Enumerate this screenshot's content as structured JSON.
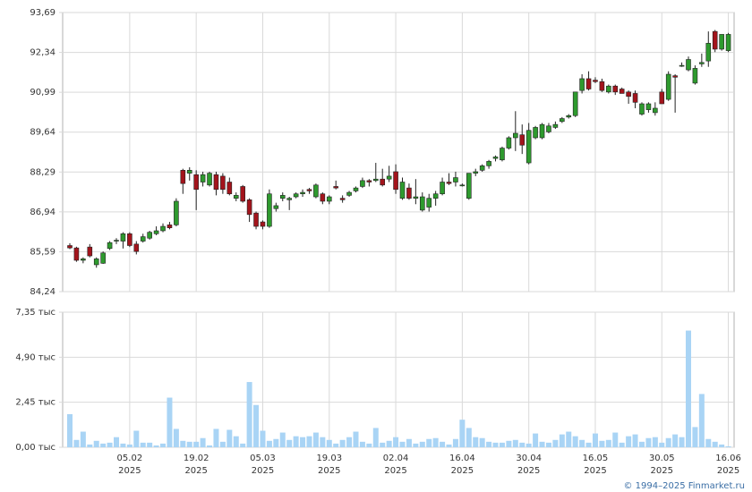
{
  "chart_data": [
    {
      "type": "candlestick",
      "up_color": "#2e9a2e",
      "down_color": "#a3141c",
      "edge_color": "#222222",
      "ylim": [
        84.24,
        93.69
      ],
      "yticks": [
        {
          "value": 84.24,
          "label": "84,24"
        },
        {
          "value": 85.59,
          "label": "85,59"
        },
        {
          "value": 86.94,
          "label": "86,94"
        },
        {
          "value": 88.29,
          "label": "88,29"
        },
        {
          "value": 89.64,
          "label": "89,64"
        },
        {
          "value": 90.99,
          "label": "90,99"
        },
        {
          "value": 92.34,
          "label": "92,34"
        },
        {
          "value": 93.69,
          "label": "93,69"
        }
      ],
      "grid": true,
      "open": [
        85.8,
        85.72,
        85.3,
        85.75,
        85.15,
        85.2,
        85.7,
        85.95,
        85.95,
        86.2,
        85.85,
        85.95,
        86.05,
        86.2,
        86.3,
        86.5,
        86.5,
        88.35,
        88.25,
        88.2,
        87.95,
        87.85,
        88.2,
        88.15,
        87.95,
        87.4,
        87.8,
        87.35,
        86.9,
        86.6,
        86.45,
        87.05,
        87.4,
        87.35,
        87.45,
        87.55,
        87.7,
        87.45,
        87.55,
        87.3,
        87.8,
        87.4,
        87.5,
        87.65,
        87.8,
        88.0,
        88.0,
        88.05,
        88.05,
        88.3,
        87.4,
        87.75,
        87.4,
        87.0,
        87.1,
        87.4,
        87.55,
        87.95,
        87.95,
        87.85,
        87.4,
        88.25,
        88.35,
        88.5,
        88.75,
        88.7,
        89.1,
        89.45,
        89.55,
        88.6,
        89.45,
        89.45,
        89.65,
        89.8,
        90.0,
        90.15,
        90.2,
        91.05,
        91.45,
        91.4,
        91.35,
        91.0,
        91.2,
        91.1,
        91.0,
        90.95,
        90.25,
        90.4,
        90.3,
        91.0,
        90.75,
        91.55,
        91.9,
        91.75,
        91.3,
        91.95,
        92.05,
        93.05,
        92.45,
        92.4
      ],
      "high": [
        85.88,
        85.76,
        85.4,
        85.85,
        85.4,
        85.6,
        85.95,
        86.05,
        86.25,
        86.25,
        85.95,
        86.2,
        86.3,
        86.45,
        86.55,
        86.6,
        87.4,
        88.4,
        88.45,
        88.35,
        88.3,
        88.3,
        88.3,
        88.25,
        88.1,
        87.6,
        87.85,
        87.4,
        86.95,
        86.65,
        87.7,
        87.25,
        87.6,
        87.45,
        87.6,
        87.7,
        87.75,
        87.9,
        87.6,
        87.5,
        88.0,
        87.5,
        87.65,
        87.8,
        88.1,
        88.05,
        88.6,
        88.4,
        88.5,
        88.55,
        88.1,
        87.9,
        88.05,
        87.6,
        87.55,
        87.65,
        88.1,
        88.25,
        88.3,
        87.9,
        88.25,
        88.4,
        88.55,
        88.7,
        88.85,
        89.15,
        89.5,
        90.35,
        89.9,
        89.95,
        89.85,
        89.95,
        89.95,
        90.0,
        90.15,
        90.25,
        91.0,
        91.6,
        91.7,
        91.5,
        91.45,
        91.25,
        91.25,
        91.15,
        91.05,
        91.05,
        90.65,
        90.65,
        90.65,
        91.1,
        91.7,
        91.6,
        92.0,
        92.2,
        91.9,
        92.3,
        93.05,
        93.1,
        92.95,
        93.0
      ],
      "low": [
        85.68,
        85.25,
        85.2,
        85.4,
        85.05,
        85.18,
        85.65,
        85.85,
        85.7,
        85.75,
        85.5,
        85.9,
        86.0,
        86.15,
        86.25,
        86.35,
        86.45,
        87.55,
        88.0,
        87.0,
        87.8,
        87.8,
        87.5,
        87.55,
        87.5,
        87.3,
        87.25,
        86.6,
        86.35,
        86.35,
        86.4,
        86.95,
        87.3,
        87.0,
        87.4,
        87.45,
        87.55,
        87.4,
        87.2,
        87.2,
        87.7,
        87.25,
        87.45,
        87.6,
        87.75,
        87.8,
        87.95,
        87.8,
        87.95,
        87.55,
        87.35,
        87.35,
        87.2,
        86.95,
        86.95,
        87.15,
        87.5,
        87.85,
        87.8,
        87.8,
        87.35,
        88.15,
        88.3,
        88.4,
        88.65,
        88.65,
        89.05,
        89.0,
        88.9,
        88.55,
        89.4,
        89.4,
        89.6,
        89.75,
        89.95,
        90.1,
        90.15,
        90.95,
        91.05,
        91.3,
        91.0,
        90.95,
        90.9,
        90.95,
        90.6,
        90.45,
        90.2,
        90.3,
        90.2,
        90.6,
        90.7,
        90.3,
        91.85,
        91.7,
        91.25,
        91.85,
        91.85,
        92.35,
        92.4,
        92.35
      ],
      "close": [
        85.72,
        85.3,
        85.35,
        85.45,
        85.35,
        85.55,
        85.9,
        85.98,
        86.2,
        85.8,
        85.6,
        86.1,
        86.25,
        86.3,
        86.45,
        86.4,
        87.3,
        87.9,
        88.35,
        87.7,
        88.2,
        88.25,
        87.7,
        87.7,
        87.55,
        87.5,
        87.3,
        86.85,
        86.45,
        86.45,
        87.55,
        87.15,
        87.5,
        87.4,
        87.55,
        87.6,
        87.65,
        87.85,
        87.3,
        87.45,
        87.75,
        87.35,
        87.6,
        87.75,
        88.0,
        87.95,
        88.05,
        87.85,
        88.15,
        87.7,
        87.95,
        87.4,
        87.45,
        87.45,
        87.4,
        87.55,
        87.95,
        87.9,
        88.1,
        87.85,
        88.25,
        88.3,
        88.5,
        88.65,
        88.8,
        89.1,
        89.45,
        89.6,
        89.2,
        89.7,
        89.8,
        89.9,
        89.85,
        89.9,
        90.1,
        90.2,
        91.0,
        91.45,
        91.1,
        91.35,
        91.05,
        91.2,
        91.0,
        90.95,
        90.85,
        90.65,
        90.6,
        90.6,
        90.45,
        90.6,
        91.6,
        91.5,
        91.9,
        92.1,
        91.8,
        92.0,
        92.65,
        92.45,
        92.95,
        92.95
      ]
    },
    {
      "type": "bar",
      "color": "#a9d4f5",
      "categories": [
        null,
        null,
        null,
        null,
        null,
        null,
        null,
        null,
        null,
        [
          "05.02",
          "2025"
        ],
        null,
        null,
        null,
        null,
        null,
        null,
        null,
        null,
        null,
        [
          "19.02",
          "2025"
        ],
        null,
        null,
        null,
        null,
        null,
        null,
        null,
        null,
        null,
        [
          "05.03",
          "2025"
        ],
        null,
        null,
        null,
        null,
        null,
        null,
        null,
        null,
        null,
        [
          "19.03",
          "2025"
        ],
        null,
        null,
        null,
        null,
        null,
        null,
        null,
        null,
        null,
        [
          "02.04",
          "2025"
        ],
        null,
        null,
        null,
        null,
        null,
        null,
        null,
        null,
        null,
        [
          "16.04",
          "2025"
        ],
        null,
        null,
        null,
        null,
        null,
        null,
        null,
        null,
        null,
        [
          "30.04",
          "2025"
        ],
        null,
        null,
        null,
        null,
        null,
        null,
        null,
        null,
        null,
        [
          "16.05",
          "2025"
        ],
        null,
        null,
        null,
        null,
        null,
        null,
        null,
        null,
        null,
        [
          "30.05",
          "2025"
        ],
        null,
        null,
        null,
        null,
        null,
        null,
        null,
        null,
        null,
        [
          "16.06",
          "2025"
        ]
      ],
      "values": [
        1.8,
        0.4,
        0.85,
        0.15,
        0.35,
        0.2,
        0.25,
        0.55,
        0.2,
        0.15,
        0.9,
        0.25,
        0.25,
        0.1,
        0.2,
        2.7,
        1.0,
        0.35,
        0.3,
        0.3,
        0.5,
        0.1,
        1.0,
        0.3,
        0.95,
        0.6,
        0.2,
        3.55,
        2.3,
        0.9,
        0.35,
        0.45,
        0.8,
        0.4,
        0.6,
        0.55,
        0.6,
        0.8,
        0.55,
        0.4,
        0.2,
        0.4,
        0.55,
        0.85,
        0.3,
        0.2,
        1.05,
        0.25,
        0.35,
        0.55,
        0.3,
        0.45,
        0.2,
        0.3,
        0.45,
        0.5,
        0.3,
        0.15,
        0.45,
        1.5,
        1.05,
        0.55,
        0.5,
        0.3,
        0.25,
        0.25,
        0.35,
        0.4,
        0.25,
        0.2,
        0.75,
        0.3,
        0.25,
        0.4,
        0.7,
        0.85,
        0.6,
        0.4,
        0.25,
        0.75,
        0.35,
        0.4,
        0.8,
        0.25,
        0.6,
        0.7,
        0.3,
        0.5,
        0.55,
        0.25,
        0.5,
        0.7,
        0.55,
        6.35,
        1.1,
        2.9,
        0.45,
        0.3,
        0.15,
        0.05
      ],
      "ylim": [
        0,
        7.35
      ],
      "yticks": [
        {
          "value": 0,
          "label": "0,00 тыс"
        },
        {
          "value": 2.45,
          "label": "2,45 тыс"
        },
        {
          "value": 4.9,
          "label": "4,90 тыс"
        },
        {
          "value": 7.35,
          "label": "7,35 тыс"
        }
      ],
      "grid": true
    }
  ],
  "footer": "© 1994–2025 Finmarket.ru"
}
